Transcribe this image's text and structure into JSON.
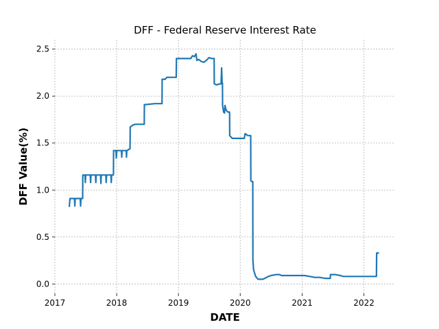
{
  "chart_data": {
    "type": "line",
    "title": "DFF - Federal Reserve Interest Rate",
    "xlabel": "DATE",
    "ylabel": "DFF Value(%)",
    "xlim": [
      "2017-01-01",
      "2022-06-30"
    ],
    "ylim": [
      -0.1,
      2.6
    ],
    "x_ticks": [
      "2017",
      "2018",
      "2019",
      "2020",
      "2021",
      "2022"
    ],
    "y_ticks": [
      "0.0",
      "0.5",
      "1.0",
      "1.5",
      "2.0",
      "2.5"
    ],
    "grid": true,
    "series": [
      {
        "color": "#1f77b4",
        "points": [
          [
            "2017-03-27",
            0.82
          ],
          [
            "2017-03-31",
            0.91
          ],
          [
            "2017-04-27",
            0.91
          ],
          [
            "2017-04-29",
            0.83
          ],
          [
            "2017-05-01",
            0.91
          ],
          [
            "2017-05-31",
            0.91
          ],
          [
            "2017-06-02",
            0.83
          ],
          [
            "2017-06-04",
            0.91
          ],
          [
            "2017-06-14",
            0.91
          ],
          [
            "2017-06-15",
            1.16
          ],
          [
            "2017-06-28",
            1.16
          ],
          [
            "2017-06-30",
            1.08
          ],
          [
            "2017-07-02",
            1.16
          ],
          [
            "2017-07-29",
            1.16
          ],
          [
            "2017-07-31",
            1.08
          ],
          [
            "2017-08-02",
            1.16
          ],
          [
            "2017-08-29",
            1.16
          ],
          [
            "2017-08-31",
            1.08
          ],
          [
            "2017-09-02",
            1.16
          ],
          [
            "2017-09-28",
            1.16
          ],
          [
            "2017-09-30",
            1.07
          ],
          [
            "2017-10-02",
            1.16
          ],
          [
            "2017-10-29",
            1.16
          ],
          [
            "2017-10-31",
            1.08
          ],
          [
            "2017-11-02",
            1.16
          ],
          [
            "2017-11-28",
            1.16
          ],
          [
            "2017-11-30",
            1.08
          ],
          [
            "2017-12-02",
            1.16
          ],
          [
            "2017-12-13",
            1.16
          ],
          [
            "2017-12-14",
            1.42
          ],
          [
            "2017-12-28",
            1.42
          ],
          [
            "2017-12-30",
            1.34
          ],
          [
            "2018-01-02",
            1.42
          ],
          [
            "2018-01-29",
            1.42
          ],
          [
            "2018-01-31",
            1.35
          ],
          [
            "2018-02-02",
            1.42
          ],
          [
            "2018-02-27",
            1.42
          ],
          [
            "2018-02-28",
            1.35
          ],
          [
            "2018-03-02",
            1.42
          ],
          [
            "2018-03-21",
            1.44
          ],
          [
            "2018-03-22",
            1.67
          ],
          [
            "2018-04-05",
            1.69
          ],
          [
            "2018-04-20",
            1.7
          ],
          [
            "2018-06-13",
            1.7
          ],
          [
            "2018-06-14",
            1.91
          ],
          [
            "2018-06-20",
            1.91
          ],
          [
            "2018-08-15",
            1.92
          ],
          [
            "2018-09-26",
            1.92
          ],
          [
            "2018-09-27",
            2.18
          ],
          [
            "2018-10-15",
            2.18
          ],
          [
            "2018-10-25",
            2.2
          ],
          [
            "2018-12-19",
            2.2
          ],
          [
            "2018-12-20",
            2.4
          ],
          [
            "2019-03-15",
            2.4
          ],
          [
            "2019-03-25",
            2.43
          ],
          [
            "2019-04-05",
            2.42
          ],
          [
            "2019-04-15",
            2.45
          ],
          [
            "2019-04-20",
            2.38
          ],
          [
            "2019-05-01",
            2.39
          ],
          [
            "2019-05-15",
            2.37
          ],
          [
            "2019-05-31",
            2.36
          ],
          [
            "2019-06-15",
            2.38
          ],
          [
            "2019-07-01",
            2.41
          ],
          [
            "2019-07-15",
            2.4
          ],
          [
            "2019-07-31",
            2.4
          ],
          [
            "2019-08-01",
            2.13
          ],
          [
            "2019-08-15",
            2.12
          ],
          [
            "2019-09-01",
            2.13
          ],
          [
            "2019-09-10",
            2.13
          ],
          [
            "2019-09-13",
            2.3
          ],
          [
            "2019-09-16",
            2.14
          ],
          [
            "2019-09-18",
            2.14
          ],
          [
            "2019-09-19",
            1.9
          ],
          [
            "2019-09-25",
            1.83
          ],
          [
            "2019-09-30",
            1.82
          ],
          [
            "2019-10-03",
            1.9
          ],
          [
            "2019-10-10",
            1.85
          ],
          [
            "2019-10-20",
            1.83
          ],
          [
            "2019-10-30",
            1.83
          ],
          [
            "2019-10-31",
            1.58
          ],
          [
            "2019-11-15",
            1.55
          ],
          [
            "2019-12-01",
            1.55
          ],
          [
            "2019-12-15",
            1.55
          ],
          [
            "2019-12-31",
            1.55
          ],
          [
            "2020-01-15",
            1.55
          ],
          [
            "2020-01-25",
            1.55
          ],
          [
            "2020-01-30",
            1.6
          ],
          [
            "2020-02-15",
            1.58
          ],
          [
            "2020-03-01",
            1.58
          ],
          [
            "2020-03-03",
            1.58
          ],
          [
            "2020-03-04",
            1.1
          ],
          [
            "2020-03-10",
            1.09
          ],
          [
            "2020-03-15",
            1.09
          ],
          [
            "2020-03-16",
            0.25
          ],
          [
            "2020-03-20",
            0.15
          ],
          [
            "2020-04-01",
            0.08
          ],
          [
            "2020-04-15",
            0.05
          ],
          [
            "2020-05-15",
            0.05
          ],
          [
            "2020-06-15",
            0.08
          ],
          [
            "2020-07-01",
            0.09
          ],
          [
            "2020-08-01",
            0.1
          ],
          [
            "2020-08-20",
            0.1
          ],
          [
            "2020-09-01",
            0.09
          ],
          [
            "2020-10-15",
            0.09
          ],
          [
            "2020-12-01",
            0.09
          ],
          [
            "2021-01-15",
            0.09
          ],
          [
            "2021-02-15",
            0.08
          ],
          [
            "2021-03-15",
            0.07
          ],
          [
            "2021-04-15",
            0.07
          ],
          [
            "2021-05-15",
            0.06
          ],
          [
            "2021-06-16",
            0.06
          ],
          [
            "2021-06-17",
            0.1
          ],
          [
            "2021-07-15",
            0.1
          ],
          [
            "2021-08-15",
            0.09
          ],
          [
            "2021-08-31",
            0.08
          ],
          [
            "2021-10-15",
            0.08
          ],
          [
            "2021-12-15",
            0.08
          ],
          [
            "2022-01-15",
            0.08
          ],
          [
            "2022-03-16",
            0.08
          ],
          [
            "2022-03-17",
            0.33
          ],
          [
            "2022-03-31",
            0.33
          ]
        ]
      }
    ]
  }
}
